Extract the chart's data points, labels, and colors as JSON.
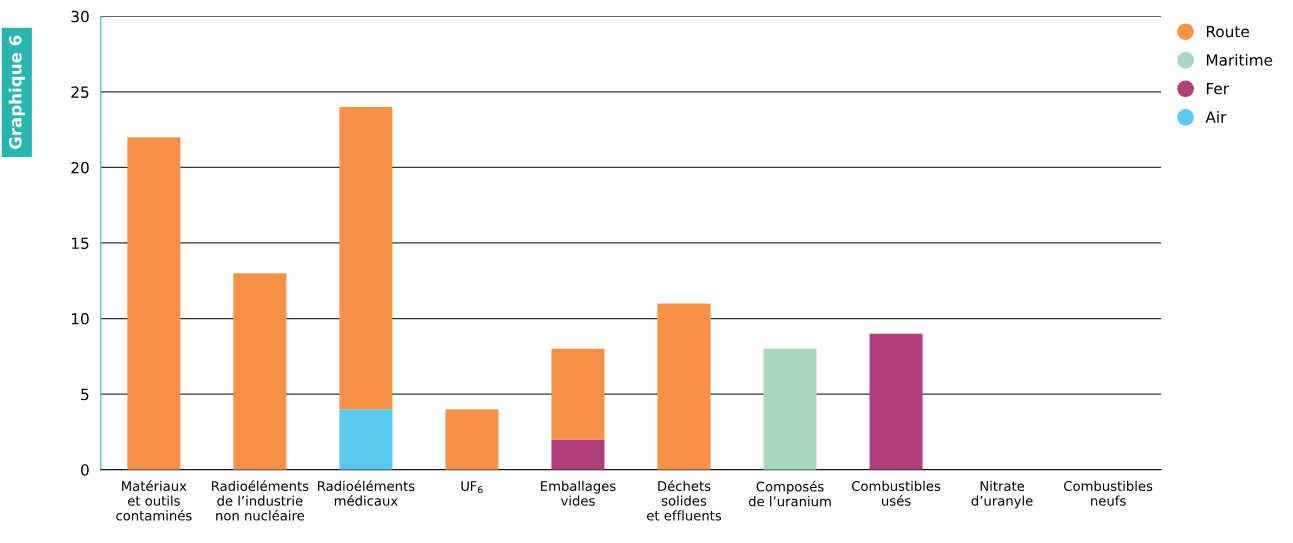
{
  "chart_data": {
    "type": "bar",
    "title": "Graphique 6",
    "stacked": true,
    "categories": [
      "Matériaux\net outils\ncontaminés",
      "Radioéléments\nde l’industrie\nnon nucléaire",
      "Radioéléments\nmédicaux",
      "UF$_{6}$",
      "Emballages\nvides",
      "Déchets\nsolides\net effluents",
      "Composés\nde l’uranium",
      "Combustibles\nusés",
      "Nitrate\nd’uranyle",
      "Combustibles\nneufs"
    ],
    "series": [
      {
        "name": "Air",
        "color": "#5bc8f0",
        "values": [
          0,
          0,
          4,
          0,
          0,
          0,
          0,
          0,
          0,
          0
        ]
      },
      {
        "name": "Fer",
        "color": "#b03e7a",
        "values": [
          0,
          0,
          0,
          0,
          2,
          0,
          0,
          9,
          0,
          0
        ]
      },
      {
        "name": "Maritime",
        "color": "#a8d8bc",
        "values": [
          0,
          0,
          0,
          0,
          0,
          0,
          8,
          0,
          0,
          0
        ]
      },
      {
        "name": "Route",
        "color": "#f79148",
        "values": [
          22,
          13,
          20,
          4,
          6,
          11,
          0,
          0,
          0,
          0
        ]
      }
    ],
    "ylim": [
      0,
      30
    ],
    "yticks": [
      0,
      5,
      10,
      15,
      20,
      25,
      30
    ],
    "grid": "y",
    "legend": "top right"
  }
}
